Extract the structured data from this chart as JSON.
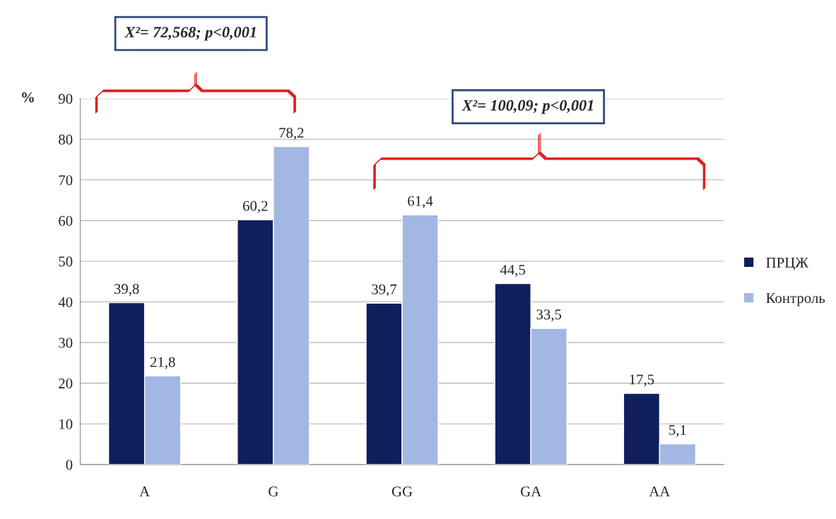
{
  "chart_data": {
    "type": "bar",
    "ylabel": "%",
    "categories": [
      "A",
      "G",
      "GG",
      "GA",
      "AA"
    ],
    "series": [
      {
        "name": "ПРЦЖ",
        "color": "#0f1f5c",
        "values": [
          39.8,
          60.2,
          39.7,
          44.5,
          17.5
        ],
        "value_labels": [
          "39,8",
          "60,2",
          "39,7",
          "44,5",
          "17,5"
        ]
      },
      {
        "name": "Контроль",
        "color": "#a3b7e3",
        "values": [
          21.8,
          78.2,
          61.4,
          33.5,
          5.1
        ],
        "value_labels": [
          "21,8",
          "78,2",
          "61,4",
          "33,5",
          "5,1"
        ]
      }
    ],
    "ylim": [
      0,
      90
    ],
    "yticks": [
      0,
      10,
      20,
      30,
      40,
      50,
      60,
      70,
      80,
      90
    ],
    "grid": "y",
    "legend": "right",
    "annotations": [
      "X²= 72,568; p<0,001",
      "X²= 100,09; p<0,001"
    ]
  }
}
